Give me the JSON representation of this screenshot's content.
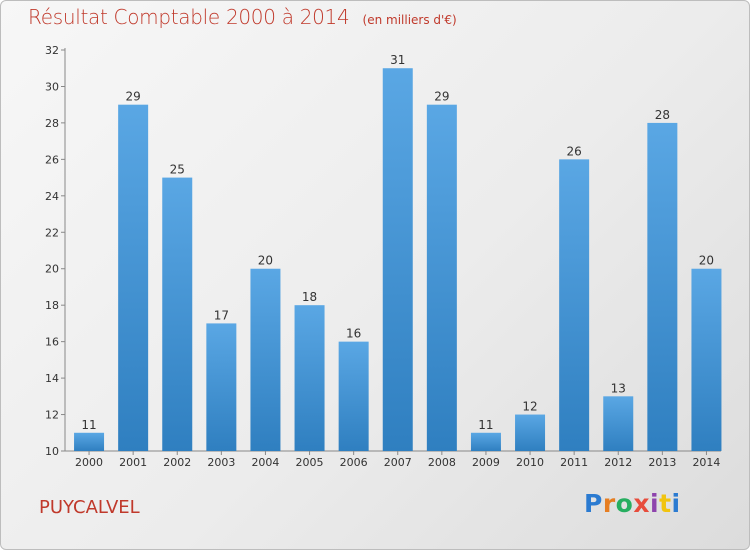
{
  "title": "Résultat Comptable 2000 à 2014",
  "unit": "(en milliers d'€)",
  "commune": "PUYCALVEL",
  "logo": "Proxiti",
  "colors": {
    "title": "#c0392b",
    "bar_light": "#5aa7e4",
    "bar_dark": "#2f7fc0",
    "logo": [
      "#2b7bd1",
      "#e67e22",
      "#27ae60",
      "#e74c3c",
      "#8e44ad",
      "#f1c40f",
      "#2b7bd1"
    ]
  },
  "chart_data": {
    "type": "bar",
    "title": "Résultat Comptable 2000 à 2014",
    "subtitle": "(en milliers d'€)",
    "categories": [
      "2000",
      "2001",
      "2002",
      "2003",
      "2004",
      "2005",
      "2006",
      "2007",
      "2008",
      "2009",
      "2010",
      "2011",
      "2012",
      "2013",
      "2014"
    ],
    "values": [
      11,
      29,
      25,
      17,
      20,
      18,
      16,
      31,
      29,
      11,
      12,
      26,
      13,
      28,
      20
    ],
    "ylim": [
      10,
      32
    ],
    "yticks": [
      10,
      12,
      14,
      16,
      18,
      20,
      22,
      24,
      26,
      28,
      30,
      32
    ],
    "xlabel": "",
    "ylabel": "",
    "grid": false,
    "legend": "none"
  }
}
